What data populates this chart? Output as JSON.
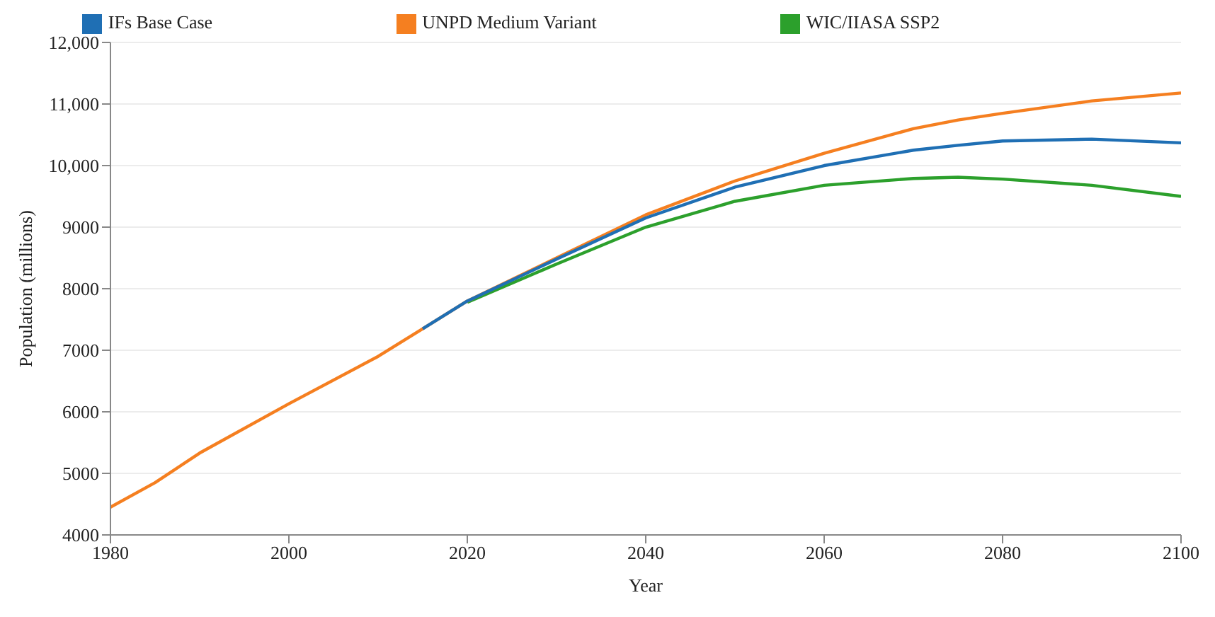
{
  "chart_data": {
    "type": "line",
    "xlabel": "Year",
    "ylabel": "Population (millions)",
    "x": [
      1980,
      1985,
      1990,
      2000,
      2010,
      2015,
      2020,
      2030,
      2040,
      2050,
      2060,
      2070,
      2075,
      2080,
      2090,
      2100
    ],
    "series": [
      {
        "name": "IFs Base Case",
        "color": "#1f6fb4",
        "values": [
          null,
          null,
          null,
          null,
          null,
          7350,
          7800,
          8480,
          9150,
          9650,
          10000,
          10250,
          10330,
          10400,
          10430,
          10370
        ]
      },
      {
        "name": "UNPD Medium Variant",
        "color": "#f57f20",
        "values": [
          4450,
          4850,
          5330,
          6130,
          6900,
          7350,
          7800,
          8500,
          9200,
          9750,
          10200,
          10600,
          10740,
          10850,
          11050,
          11180
        ]
      },
      {
        "name": "WIC/IIASA SSP2",
        "color": "#2ca02c",
        "values": [
          null,
          null,
          null,
          null,
          null,
          null,
          7780,
          8400,
          9000,
          9420,
          9680,
          9790,
          9810,
          9780,
          9680,
          9500
        ]
      }
    ],
    "xlim": [
      1980,
      2100
    ],
    "xticks": [
      1980,
      2000,
      2020,
      2040,
      2060,
      2080,
      2100
    ],
    "ylim": [
      4000,
      12000
    ],
    "yticks": [
      4000,
      5000,
      6000,
      7000,
      8000,
      9000,
      {
        "value": 10000,
        "label": "10,000"
      },
      {
        "value": 11000,
        "label": "11,000"
      },
      {
        "value": 12000,
        "label": "12,000"
      }
    ],
    "grid": "y",
    "legend": "top",
    "marker": "none",
    "line_style": "solid"
  }
}
